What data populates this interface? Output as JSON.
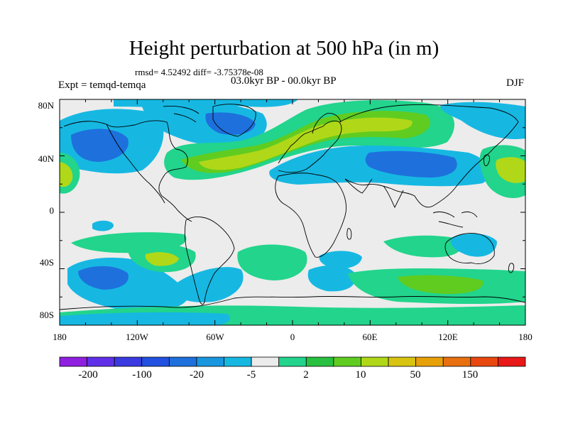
{
  "title": "Height perturbation at 500 hPa (in m)",
  "stats": "rmsd= 4.52492 diff= -3.75378e-08",
  "experiment": "Expt = temqd-temqa",
  "period": "03.0kyr BP - 00.0kyr BP",
  "season": "DJF",
  "axes": {
    "x_ticks": [
      "180",
      "120W",
      "60W",
      "0",
      "60E",
      "120E",
      "180"
    ],
    "y_ticks": [
      "80N",
      "40N",
      "0",
      "40S",
      "80S"
    ]
  },
  "colorbar": {
    "labels": [
      "-200",
      "-100",
      "-20",
      "-5",
      "2",
      "10",
      "50",
      "150"
    ],
    "colors": [
      "#8f20e0",
      "#6030e8",
      "#3a3ae0",
      "#2250e0",
      "#1e70dc",
      "#1896de",
      "#16b8e2",
      "#ececec",
      "#22d48c",
      "#28c040",
      "#60cc20",
      "#b0d818",
      "#d8c410",
      "#e8a008",
      "#e87010",
      "#e84810",
      "#e81818"
    ]
  },
  "palette": {
    "land_bg": "#ececec",
    "coast": "#000000"
  }
}
